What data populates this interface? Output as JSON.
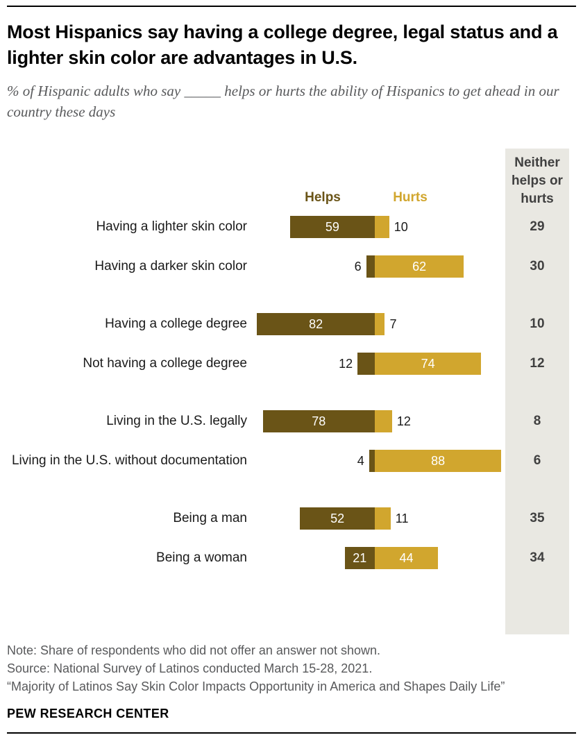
{
  "header": {
    "title": "Most Hispanics say having a college degree, legal status and a lighter skin color are advantages in U.S.",
    "subtitle": "% of Hispanic adults who say _____  helps or hurts the ability of Hispanics to get ahead in our country these days"
  },
  "chart_data": {
    "type": "bar",
    "variant": "diverging-horizontal",
    "legend": {
      "helps": "Helps",
      "hurts": "Hurts"
    },
    "neither_header": "Neither helps or hurts",
    "colors": {
      "helps": "#6a5417",
      "hurts": "#d1a62e",
      "neither_bg": "#e9e8e2",
      "neither_text": "#404040"
    },
    "xmax": 90,
    "rows": [
      {
        "label": "Having a lighter skin color",
        "helps": 59,
        "hurts": 10,
        "neither": 29,
        "group": 0
      },
      {
        "label": "Having a darker skin color",
        "helps": 6,
        "hurts": 62,
        "neither": 30,
        "group": 0
      },
      {
        "label": "Having a college degree",
        "helps": 82,
        "hurts": 7,
        "neither": 10,
        "group": 1
      },
      {
        "label": "Not having a college degree",
        "helps": 12,
        "hurts": 74,
        "neither": 12,
        "group": 1
      },
      {
        "label": "Living in the U.S. legally",
        "helps": 78,
        "hurts": 12,
        "neither": 8,
        "group": 2
      },
      {
        "label": "Living in the U.S. without documentation",
        "helps": 4,
        "hurts": 88,
        "neither": 6,
        "group": 2
      },
      {
        "label": "Being a man",
        "helps": 52,
        "hurts": 11,
        "neither": 35,
        "group": 3
      },
      {
        "label": "Being a woman",
        "helps": 21,
        "hurts": 44,
        "neither": 34,
        "group": 3
      }
    ]
  },
  "footer": {
    "note": "Note: Share of respondents who did not offer an answer not shown.",
    "source": "Source: National Survey of Latinos conducted March 15-28, 2021.",
    "report": "“Majority of Latinos Say Skin Color Impacts Opportunity in America and Shapes Daily Life”",
    "brand": "PEW RESEARCH CENTER"
  }
}
